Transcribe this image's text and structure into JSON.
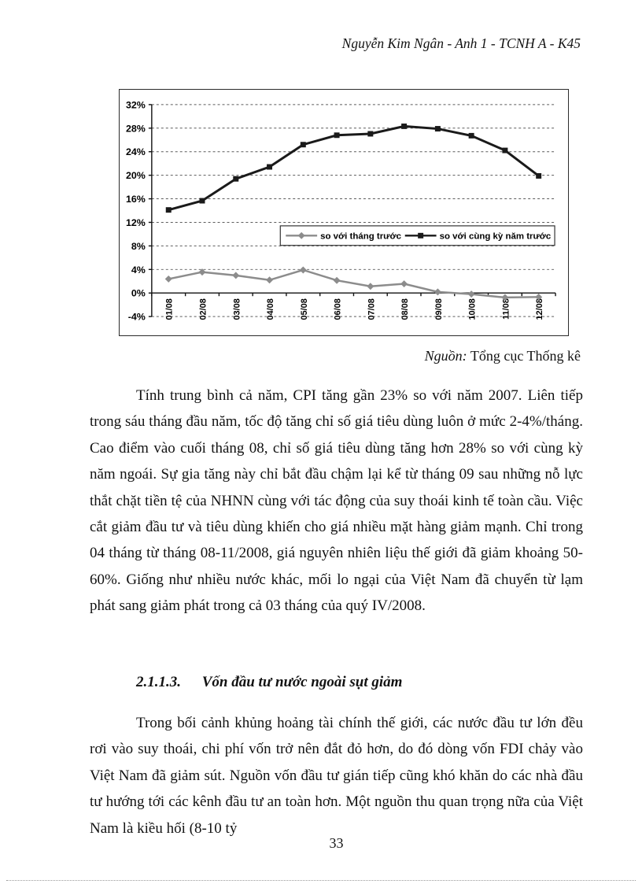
{
  "page": {
    "header_text": "Nguyễn Kim Ngân - Anh 1 - TCNH A - K45",
    "page_number": "33"
  },
  "chart_caption": {
    "source_label": "Nguồn:",
    "source_text": "Tổng cục Thống kê"
  },
  "chart_data": {
    "type": "line",
    "categories": [
      "01/08",
      "02/08",
      "03/08",
      "04/08",
      "05/08",
      "06/08",
      "07/08",
      "08/08",
      "09/08",
      "10/08",
      "11/08",
      "12/08"
    ],
    "series": [
      {
        "name": "so với tháng trước",
        "marker": "diamond",
        "color": "#8c8c8c",
        "line_width": 2.5,
        "values": [
          2.38,
          3.56,
          2.99,
          2.2,
          3.91,
          2.14,
          1.13,
          1.56,
          0.18,
          -0.19,
          -0.76,
          -0.68
        ]
      },
      {
        "name": "so với cùng kỳ năm trước",
        "marker": "square",
        "color": "#1a1a1a",
        "line_width": 3,
        "values": [
          14.11,
          15.67,
          19.39,
          21.42,
          25.2,
          26.8,
          27.04,
          28.32,
          27.9,
          26.72,
          24.22,
          19.89
        ]
      }
    ],
    "ylim": [
      -4,
      32
    ],
    "yticks": [
      {
        "v": 32,
        "label": "32%"
      },
      {
        "v": 28,
        "label": "28%"
      },
      {
        "v": 24,
        "label": "24%"
      },
      {
        "v": 20,
        "label": "20%"
      },
      {
        "v": 16,
        "label": "16%"
      },
      {
        "v": 12,
        "label": "12%"
      },
      {
        "v": 8,
        "label": "8%"
      },
      {
        "v": 4,
        "label": "4%"
      },
      {
        "v": 0,
        "label": "0%"
      },
      {
        "v": -4,
        "label": "-4%"
      }
    ],
    "gridlines": [
      32,
      28,
      24,
      20,
      16,
      12,
      8,
      4,
      -4
    ],
    "grid_style": "dashed",
    "legend_position": "inside-middle",
    "xlabel": "",
    "ylabel": ""
  },
  "content": {
    "paragraph_cpi": "Tính trung bình cả năm, CPI tăng gần 23% so với năm 2007. Liên tiếp trong sáu tháng đầu năm, tốc độ tăng chỉ số giá tiêu dùng luôn ở mức 2-4%/tháng. Cao điểm vào cuối tháng 08, chỉ số giá tiêu dùng tăng hơn 28% so với cùng kỳ năm ngoái. Sự gia tăng này chỉ bắt đầu chậm lại kể từ tháng 09 sau những nỗ lực thắt chặt tiền tệ của NHNN cùng với tác động của suy thoái kinh tế toàn cầu. Việc cắt giảm đầu tư và tiêu dùng khiến cho giá nhiều mặt hàng giảm mạnh. Chỉ trong 04 tháng từ tháng 08-11/2008, giá nguyên nhiên liệu thế giới đã giảm khoảng 50-60%. Giống như nhiều nước khác, mối lo ngại của Việt Nam đã chuyển từ lạm phát sang giảm phát trong cả 03 tháng của quý IV/2008.",
    "heading_number": "2.1.1.3.",
    "heading_title": "Vốn đầu tư nước ngoài sụt giảm",
    "paragraph_fdi": "Trong bối cảnh khủng hoảng tài chính thế giới, các nước đầu tư lớn đều rơi vào suy thoái, chi phí vốn trở nên đắt đỏ hơn, do đó dòng vốn FDI chảy vào Việt Nam đã giảm sút. Nguồn vốn đầu tư gián tiếp cũng khó khăn do các nhà đầu tư hướng tới các kênh đầu tư an toàn hơn. Một nguồn thu quan trọng nữa của Việt Nam là kiều hối (8-10 tỷ"
  }
}
